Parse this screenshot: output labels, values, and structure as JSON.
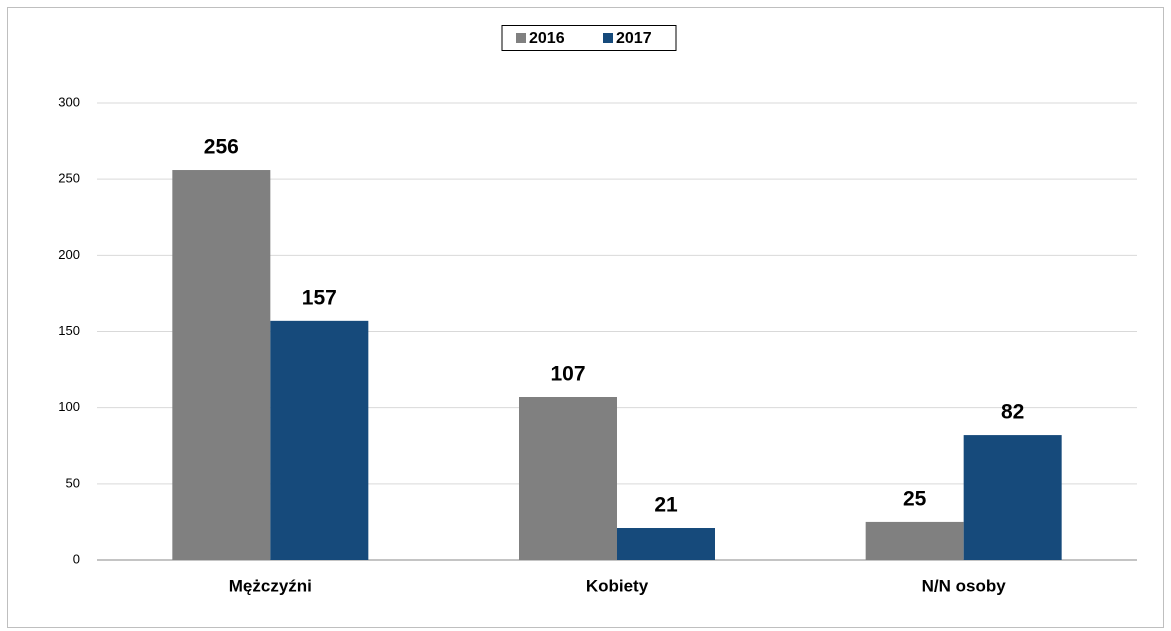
{
  "chart_data": {
    "type": "bar",
    "categories": [
      "Mężczyźni",
      "Kobiety",
      "N/N osoby"
    ],
    "series": [
      {
        "name": "2016",
        "color": "#808080",
        "values": [
          256,
          107,
          25
        ]
      },
      {
        "name": "2017",
        "color": "#164a7b",
        "values": [
          157,
          21,
          82
        ]
      }
    ],
    "ylim": [
      0,
      300
    ],
    "yticks": [
      0,
      50,
      100,
      150,
      200,
      250,
      300
    ],
    "grid": true,
    "legend": "top"
  }
}
